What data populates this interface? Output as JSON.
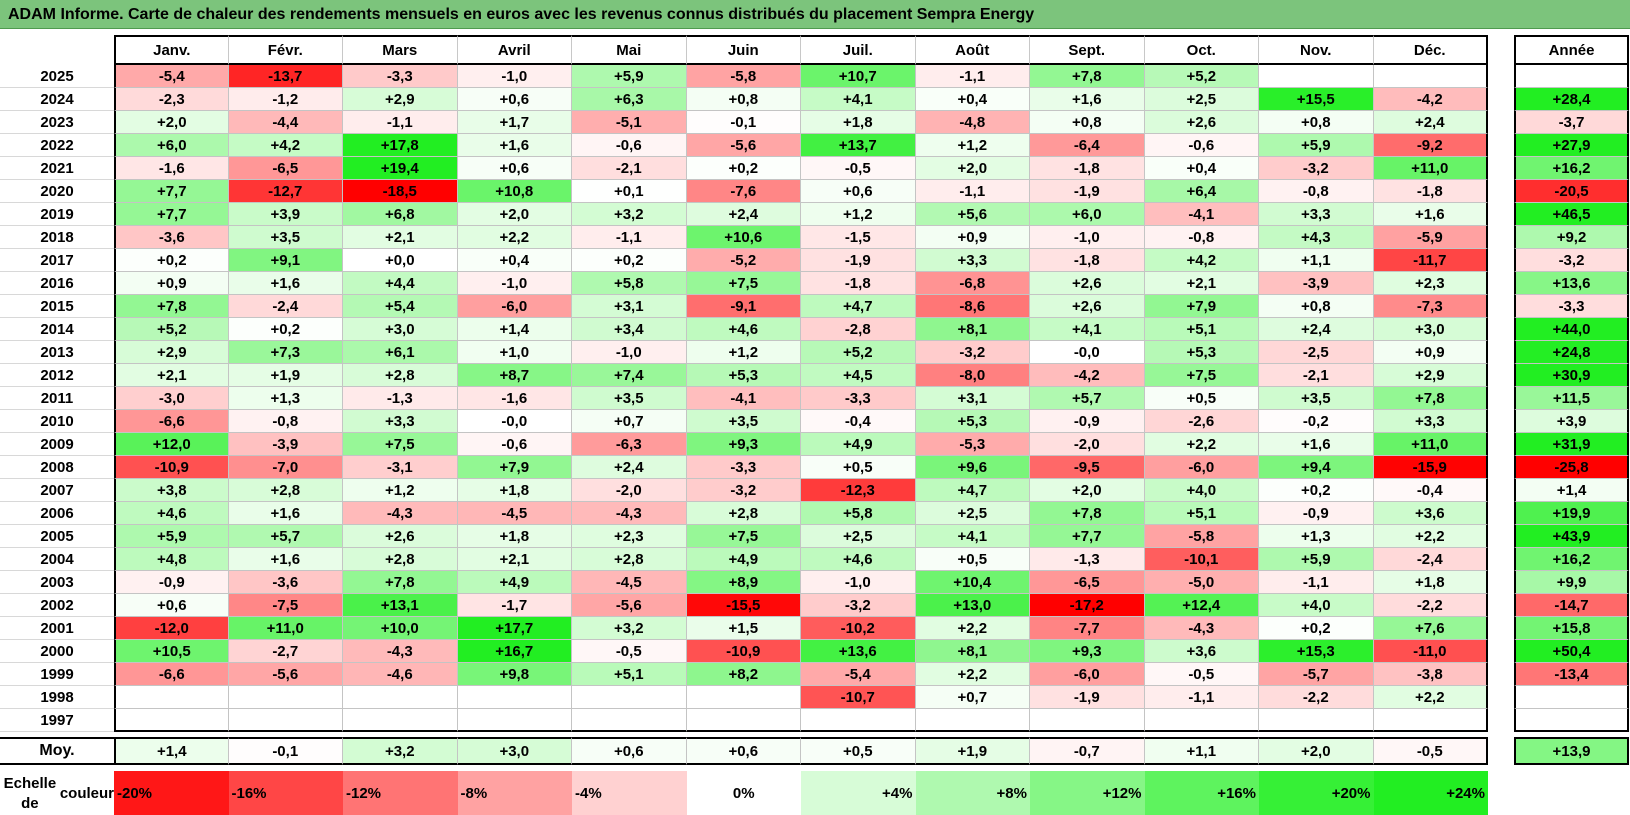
{
  "title": "ADAM Informe. Carte de chaleur des rendements mensuels en euros avec les revenus connus distribués du placement Sempra Energy",
  "chart_data": {
    "type": "heatmap",
    "title": "ADAM Informe. Carte de chaleur des rendements mensuels en euros avec les revenus connus distribués du placement Sempra Energy",
    "columns": [
      "Janv.",
      "Févr.",
      "Mars",
      "Avril",
      "Mai",
      "Juin",
      "Juil.",
      "Août",
      "Sept.",
      "Oct.",
      "Nov.",
      "Déc."
    ],
    "year_column": "Année",
    "rows": [
      {
        "year": "2025",
        "values": [
          "-5,4",
          "-13,7",
          "-3,3",
          "-1,0",
          "+5,9",
          "-5,8",
          "+10,7",
          "-1,1",
          "+7,8",
          "+5,2",
          "",
          ""
        ],
        "annual": ""
      },
      {
        "year": "2024",
        "values": [
          "-2,3",
          "-1,2",
          "+2,9",
          "+0,6",
          "+6,3",
          "+0,8",
          "+4,1",
          "+0,4",
          "+1,6",
          "+2,5",
          "+15,5",
          "-4,2"
        ],
        "annual": "+28,4"
      },
      {
        "year": "2023",
        "values": [
          "+2,0",
          "-4,4",
          "-1,1",
          "+1,7",
          "-5,1",
          "-0,1",
          "+1,8",
          "-4,8",
          "+0,8",
          "+2,6",
          "+0,8",
          "+2,4"
        ],
        "annual": "-3,7"
      },
      {
        "year": "2022",
        "values": [
          "+6,0",
          "+4,2",
          "+17,8",
          "+1,6",
          "-0,6",
          "-5,6",
          "+13,7",
          "+1,2",
          "-6,4",
          "-0,6",
          "+5,9",
          "-9,2"
        ],
        "annual": "+27,9"
      },
      {
        "year": "2021",
        "values": [
          "-1,6",
          "-6,5",
          "+19,4",
          "+0,6",
          "-2,1",
          "+0,2",
          "-0,5",
          "+2,0",
          "-1,8",
          "+0,4",
          "-3,2",
          "+11,0"
        ],
        "annual": "+16,2"
      },
      {
        "year": "2020",
        "values": [
          "+7,7",
          "-12,7",
          "-18,5",
          "+10,8",
          "+0,1",
          "-7,6",
          "+0,6",
          "-1,1",
          "-1,9",
          "+6,4",
          "-0,8",
          "-1,8"
        ],
        "annual": "-20,5"
      },
      {
        "year": "2019",
        "values": [
          "+7,7",
          "+3,9",
          "+6,8",
          "+2,0",
          "+3,2",
          "+2,4",
          "+1,2",
          "+5,6",
          "+6,0",
          "-4,1",
          "+3,3",
          "+1,6"
        ],
        "annual": "+46,5"
      },
      {
        "year": "2018",
        "values": [
          "-3,6",
          "+3,5",
          "+2,1",
          "+2,2",
          "-1,1",
          "+10,6",
          "-1,5",
          "+0,9",
          "-1,0",
          "-0,8",
          "+4,3",
          "-5,9"
        ],
        "annual": "+9,2"
      },
      {
        "year": "2017",
        "values": [
          "+0,2",
          "+9,1",
          "+0,0",
          "+0,4",
          "+0,2",
          "-5,2",
          "-1,9",
          "+3,3",
          "-1,8",
          "+4,2",
          "+1,1",
          "-11,7"
        ],
        "annual": "-3,2"
      },
      {
        "year": "2016",
        "values": [
          "+0,9",
          "+1,6",
          "+4,4",
          "-1,0",
          "+5,8",
          "+7,5",
          "-1,8",
          "-6,8",
          "+2,6",
          "+2,1",
          "-3,9",
          "+2,3"
        ],
        "annual": "+13,6"
      },
      {
        "year": "2015",
        "values": [
          "+7,8",
          "-2,4",
          "+5,4",
          "-6,0",
          "+3,1",
          "-9,1",
          "+4,7",
          "-8,6",
          "+2,6",
          "+7,9",
          "+0,8",
          "-7,3"
        ],
        "annual": "-3,3"
      },
      {
        "year": "2014",
        "values": [
          "+5,2",
          "+0,2",
          "+3,0",
          "+1,4",
          "+3,4",
          "+4,6",
          "-2,8",
          "+8,1",
          "+4,1",
          "+5,1",
          "+2,4",
          "+3,0"
        ],
        "annual": "+44,0"
      },
      {
        "year": "2013",
        "values": [
          "+2,9",
          "+7,3",
          "+6,1",
          "+1,0",
          "-1,0",
          "+1,2",
          "+5,2",
          "-3,2",
          "-0,0",
          "+5,3",
          "-2,5",
          "+0,9"
        ],
        "annual": "+24,8"
      },
      {
        "year": "2012",
        "values": [
          "+2,1",
          "+1,9",
          "+2,8",
          "+8,7",
          "+7,4",
          "+5,3",
          "+4,5",
          "-8,0",
          "-4,2",
          "+7,5",
          "-2,1",
          "+2,9"
        ],
        "annual": "+30,9"
      },
      {
        "year": "2011",
        "values": [
          "-3,0",
          "+1,3",
          "-1,3",
          "-1,6",
          "+3,5",
          "-4,1",
          "-3,3",
          "+3,1",
          "+5,7",
          "+0,5",
          "+3,5",
          "+7,8"
        ],
        "annual": "+11,5"
      },
      {
        "year": "2010",
        "values": [
          "-6,6",
          "-0,8",
          "+3,3",
          "-0,0",
          "+0,7",
          "+3,5",
          "-0,4",
          "+5,3",
          "-0,9",
          "-2,6",
          "-0,2",
          "+3,3"
        ],
        "annual": "+3,9"
      },
      {
        "year": "2009",
        "values": [
          "+12,0",
          "-3,9",
          "+7,5",
          "-0,6",
          "-6,3",
          "+9,3",
          "+4,9",
          "-5,3",
          "-2,0",
          "+2,2",
          "+1,6",
          "+11,0"
        ],
        "annual": "+31,9"
      },
      {
        "year": "2008",
        "values": [
          "-10,9",
          "-7,0",
          "-3,1",
          "+7,9",
          "+2,4",
          "-3,3",
          "+0,5",
          "+9,6",
          "-9,5",
          "-6,0",
          "+9,4",
          "-15,9"
        ],
        "annual": "-25,8"
      },
      {
        "year": "2007",
        "values": [
          "+3,8",
          "+2,8",
          "+1,2",
          "+1,8",
          "-2,0",
          "-3,2",
          "-12,3",
          "+4,7",
          "+2,0",
          "+4,0",
          "+0,2",
          "-0,4"
        ],
        "annual": "+1,4"
      },
      {
        "year": "2006",
        "values": [
          "+4,6",
          "+1,6",
          "-4,3",
          "-4,5",
          "-4,3",
          "+2,8",
          "+5,8",
          "+2,5",
          "+7,8",
          "+5,1",
          "-0,9",
          "+3,6"
        ],
        "annual": "+19,9"
      },
      {
        "year": "2005",
        "values": [
          "+5,9",
          "+5,7",
          "+2,6",
          "+1,8",
          "+2,3",
          "+7,5",
          "+2,5",
          "+4,1",
          "+7,7",
          "-5,8",
          "+1,3",
          "+2,2"
        ],
        "annual": "+43,9"
      },
      {
        "year": "2004",
        "values": [
          "+4,8",
          "+1,6",
          "+2,8",
          "+2,1",
          "+2,8",
          "+4,9",
          "+4,6",
          "+0,5",
          "-1,3",
          "-10,1",
          "+5,9",
          "-2,4"
        ],
        "annual": "+16,2"
      },
      {
        "year": "2003",
        "values": [
          "-0,9",
          "-3,6",
          "+7,8",
          "+4,9",
          "-4,5",
          "+8,9",
          "-1,0",
          "+10,4",
          "-6,5",
          "-5,0",
          "-1,1",
          "+1,8"
        ],
        "annual": "+9,9"
      },
      {
        "year": "2002",
        "values": [
          "+0,6",
          "-7,5",
          "+13,1",
          "-1,7",
          "-5,6",
          "-15,5",
          "-3,2",
          "+13,0",
          "-17,2",
          "+12,4",
          "+4,0",
          "-2,2"
        ],
        "annual": "-14,7"
      },
      {
        "year": "2001",
        "values": [
          "-12,0",
          "+11,0",
          "+10,0",
          "+17,7",
          "+3,2",
          "+1,5",
          "-10,2",
          "+2,2",
          "-7,7",
          "-4,3",
          "+0,2",
          "+7,6"
        ],
        "annual": "+15,8"
      },
      {
        "year": "2000",
        "values": [
          "+10,5",
          "-2,7",
          "-4,3",
          "+16,7",
          "-0,5",
          "-10,9",
          "+13,6",
          "+8,1",
          "+9,3",
          "+3,6",
          "+15,3",
          "-11,0"
        ],
        "annual": "+50,4"
      },
      {
        "year": "1999",
        "values": [
          "-6,6",
          "-5,6",
          "-4,6",
          "+9,8",
          "+5,1",
          "+8,2",
          "-5,4",
          "+2,2",
          "-6,0",
          "-0,5",
          "-5,7",
          "-3,8"
        ],
        "annual": "-13,4"
      },
      {
        "year": "1998",
        "values": [
          "",
          "",
          "",
          "",
          "",
          "",
          "-10,7",
          "+0,7",
          "-1,9",
          "-1,1",
          "-2,2",
          "+2,2"
        ],
        "annual": ""
      },
      {
        "year": "1997",
        "values": [
          "",
          "",
          "",
          "",
          "",
          "",
          "",
          "",
          "",
          "",
          "",
          ""
        ],
        "annual": ""
      }
    ],
    "average_label": "Moy.",
    "average": {
      "values": [
        "+1,4",
        "-0,1",
        "+3,2",
        "+3,0",
        "+0,6",
        "+0,6",
        "+0,5",
        "+1,9",
        "-0,7",
        "+1,1",
        "+2,0",
        "-0,5"
      ],
      "annual": "+13,9"
    },
    "scale_label_line1": "Echelle de",
    "scale_label_line2": "couleur",
    "scale": [
      {
        "label": "-20%",
        "value": -20,
        "align": "left"
      },
      {
        "label": "-16%",
        "value": -16,
        "align": "left"
      },
      {
        "label": "-12%",
        "value": -12,
        "align": "left"
      },
      {
        "label": "-8%",
        "value": -8,
        "align": "left"
      },
      {
        "label": "-4%",
        "value": -4,
        "align": "left"
      },
      {
        "label": "0%",
        "value": 0,
        "align": "center"
      },
      {
        "label": "+4%",
        "value": 4,
        "align": "right"
      },
      {
        "label": "+8%",
        "value": 8,
        "align": "right"
      },
      {
        "label": "+12%",
        "value": 12,
        "align": "right"
      },
      {
        "label": "+16%",
        "value": 16,
        "align": "right"
      },
      {
        "label": "+20%",
        "value": 20,
        "align": "right"
      },
      {
        "label": "+24%",
        "value": 24,
        "align": "right"
      }
    ],
    "color_scale": {
      "negative_max": "#ff0000",
      "neutral": "#ffffff",
      "positive_max": "#22ee22"
    }
  }
}
